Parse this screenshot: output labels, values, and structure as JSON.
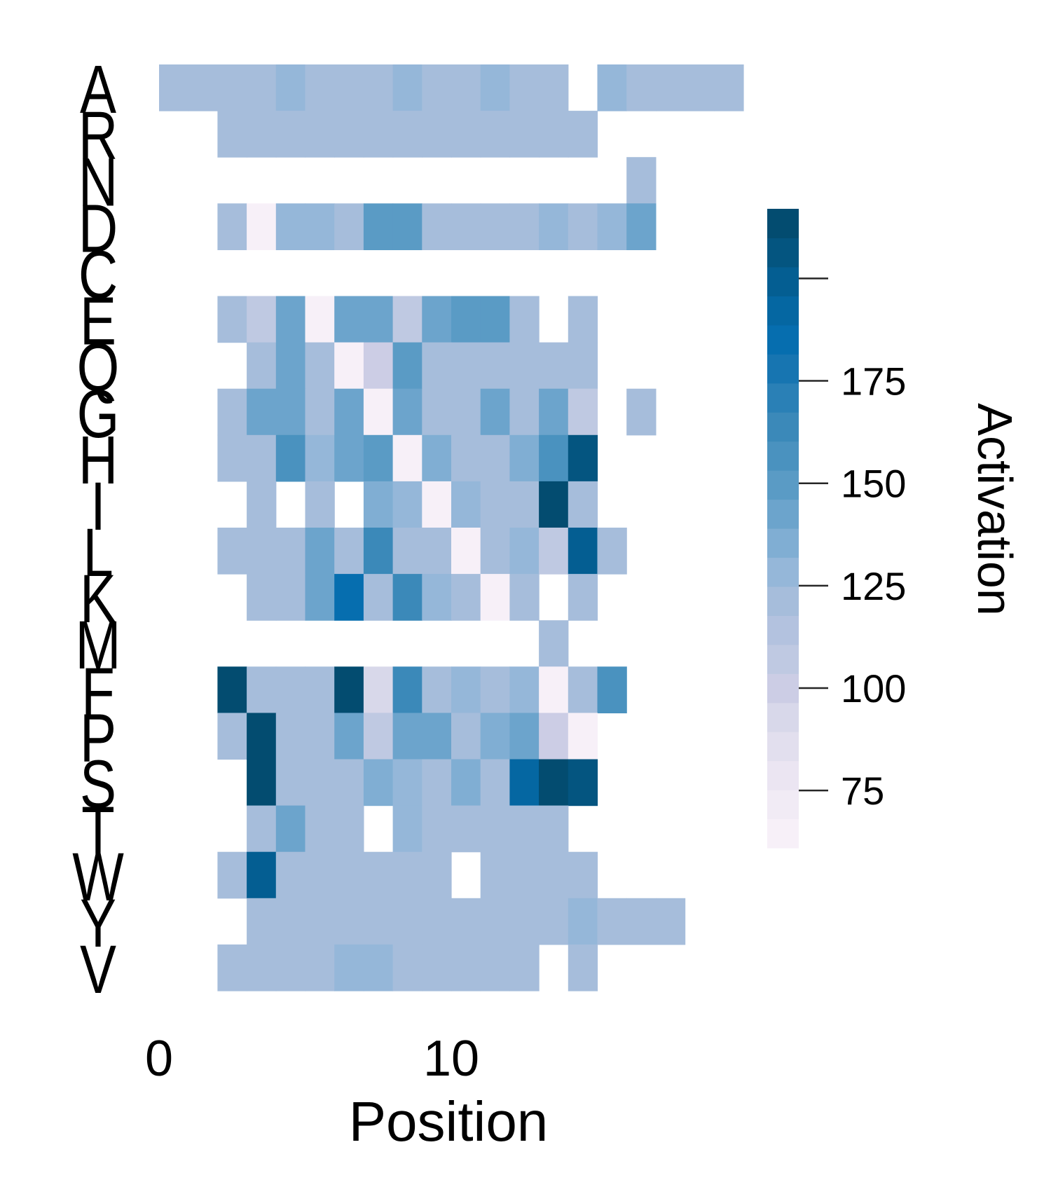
{
  "chart_data": {
    "type": "heatmap",
    "xlabel": "Position",
    "ylabel": "",
    "x_ticks": [
      0,
      10
    ],
    "n_positions": 20,
    "rows": [
      "A",
      "R",
      "N",
      "D",
      "C",
      "E",
      "Q",
      "G",
      "H",
      "I",
      "L",
      "K",
      "M",
      "F",
      "P",
      "S",
      "T",
      "W",
      "Y",
      "V"
    ],
    "values": [
      [
        120,
        120,
        120,
        120,
        130,
        120,
        120,
        120,
        130,
        120,
        120,
        130,
        120,
        120,
        null,
        130,
        120,
        120,
        120,
        120
      ],
      [
        null,
        null,
        120,
        120,
        120,
        120,
        120,
        120,
        120,
        120,
        120,
        120,
        120,
        120,
        120,
        null,
        null,
        null,
        null,
        null
      ],
      [
        null,
        null,
        null,
        null,
        null,
        null,
        null,
        null,
        null,
        null,
        null,
        null,
        null,
        null,
        null,
        null,
        120,
        null,
        null,
        null
      ],
      [
        null,
        null,
        120,
        65,
        130,
        130,
        120,
        150,
        150,
        120,
        120,
        120,
        120,
        130,
        120,
        130,
        140,
        null,
        null,
        null
      ],
      [
        null,
        null,
        null,
        null,
        null,
        null,
        null,
        null,
        null,
        null,
        null,
        null,
        null,
        null,
        null,
        null,
        null,
        null,
        null,
        null
      ],
      [
        null,
        null,
        120,
        105,
        145,
        65,
        140,
        140,
        110,
        145,
        150,
        150,
        120,
        null,
        120,
        null,
        null,
        null,
        null,
        null
      ],
      [
        null,
        null,
        null,
        120,
        140,
        120,
        65,
        100,
        150,
        120,
        120,
        120,
        120,
        120,
        120,
        null,
        null,
        null,
        null,
        null
      ],
      [
        null,
        null,
        120,
        145,
        145,
        120,
        140,
        65,
        145,
        120,
        120,
        145,
        120,
        145,
        110,
        null,
        120,
        null,
        null,
        null
      ],
      [
        null,
        null,
        120,
        120,
        160,
        130,
        140,
        150,
        65,
        135,
        120,
        120,
        135,
        160,
        205,
        null,
        null,
        null,
        null,
        null
      ],
      [
        null,
        null,
        null,
        120,
        null,
        120,
        null,
        135,
        125,
        65,
        125,
        120,
        120,
        215,
        120,
        null,
        null,
        null,
        null,
        null
      ],
      [
        null,
        null,
        120,
        120,
        120,
        145,
        120,
        165,
        120,
        120,
        65,
        120,
        125,
        110,
        200,
        120,
        null,
        null,
        null,
        null
      ],
      [
        null,
        null,
        null,
        120,
        120,
        145,
        185,
        120,
        165,
        125,
        120,
        65,
        120,
        null,
        120,
        null,
        null,
        null,
        null,
        null
      ],
      [
        null,
        null,
        null,
        null,
        null,
        null,
        null,
        null,
        null,
        null,
        null,
        null,
        null,
        120,
        null,
        null,
        null,
        null,
        null,
        null
      ],
      [
        null,
        null,
        210,
        120,
        120,
        120,
        210,
        95,
        165,
        120,
        125,
        120,
        130,
        65,
        120,
        155,
        null,
        null,
        null,
        null
      ],
      [
        null,
        null,
        120,
        210,
        120,
        120,
        140,
        105,
        145,
        140,
        120,
        135,
        145,
        100,
        65,
        null,
        null,
        null,
        null,
        null
      ],
      [
        null,
        null,
        null,
        210,
        120,
        120,
        120,
        135,
        130,
        120,
        135,
        120,
        190,
        210,
        205,
        null,
        null,
        null,
        null,
        null
      ],
      [
        null,
        null,
        null,
        120,
        140,
        120,
        120,
        null,
        130,
        120,
        120,
        120,
        120,
        120,
        null,
        null,
        null,
        null,
        null,
        null
      ],
      [
        null,
        null,
        120,
        200,
        120,
        120,
        120,
        120,
        120,
        120,
        null,
        120,
        120,
        120,
        120,
        null,
        null,
        null,
        null,
        null
      ],
      [
        null,
        null,
        null,
        120,
        120,
        120,
        120,
        120,
        120,
        120,
        120,
        120,
        120,
        120,
        125,
        120,
        120,
        120,
        null,
        null
      ],
      [
        null,
        null,
        120,
        120,
        120,
        120,
        125,
        125,
        120,
        120,
        120,
        120,
        120,
        null,
        120,
        null,
        null,
        null,
        null,
        null
      ]
    ],
    "colorbar": {
      "label": "Activation",
      "ticks": [
        75,
        100,
        125,
        150,
        175
      ],
      "vmin": 61,
      "vmax": 217,
      "colors": [
        "#f7f0f8",
        "#f1ebf5",
        "#ebe5f2",
        "#e2dfee",
        "#d8d8ea",
        "#cccde5",
        "#bfc9e2",
        "#b3c2df",
        "#a6bddb",
        "#95b7d9",
        "#80aed3",
        "#6ca4cc",
        "#5a9bc5",
        "#4a92bf",
        "#3b89b9",
        "#2a80b6",
        "#1775b1",
        "#066eaf",
        "#0567a2",
        "#045e92",
        "#045580",
        "#034c70"
      ]
    }
  }
}
